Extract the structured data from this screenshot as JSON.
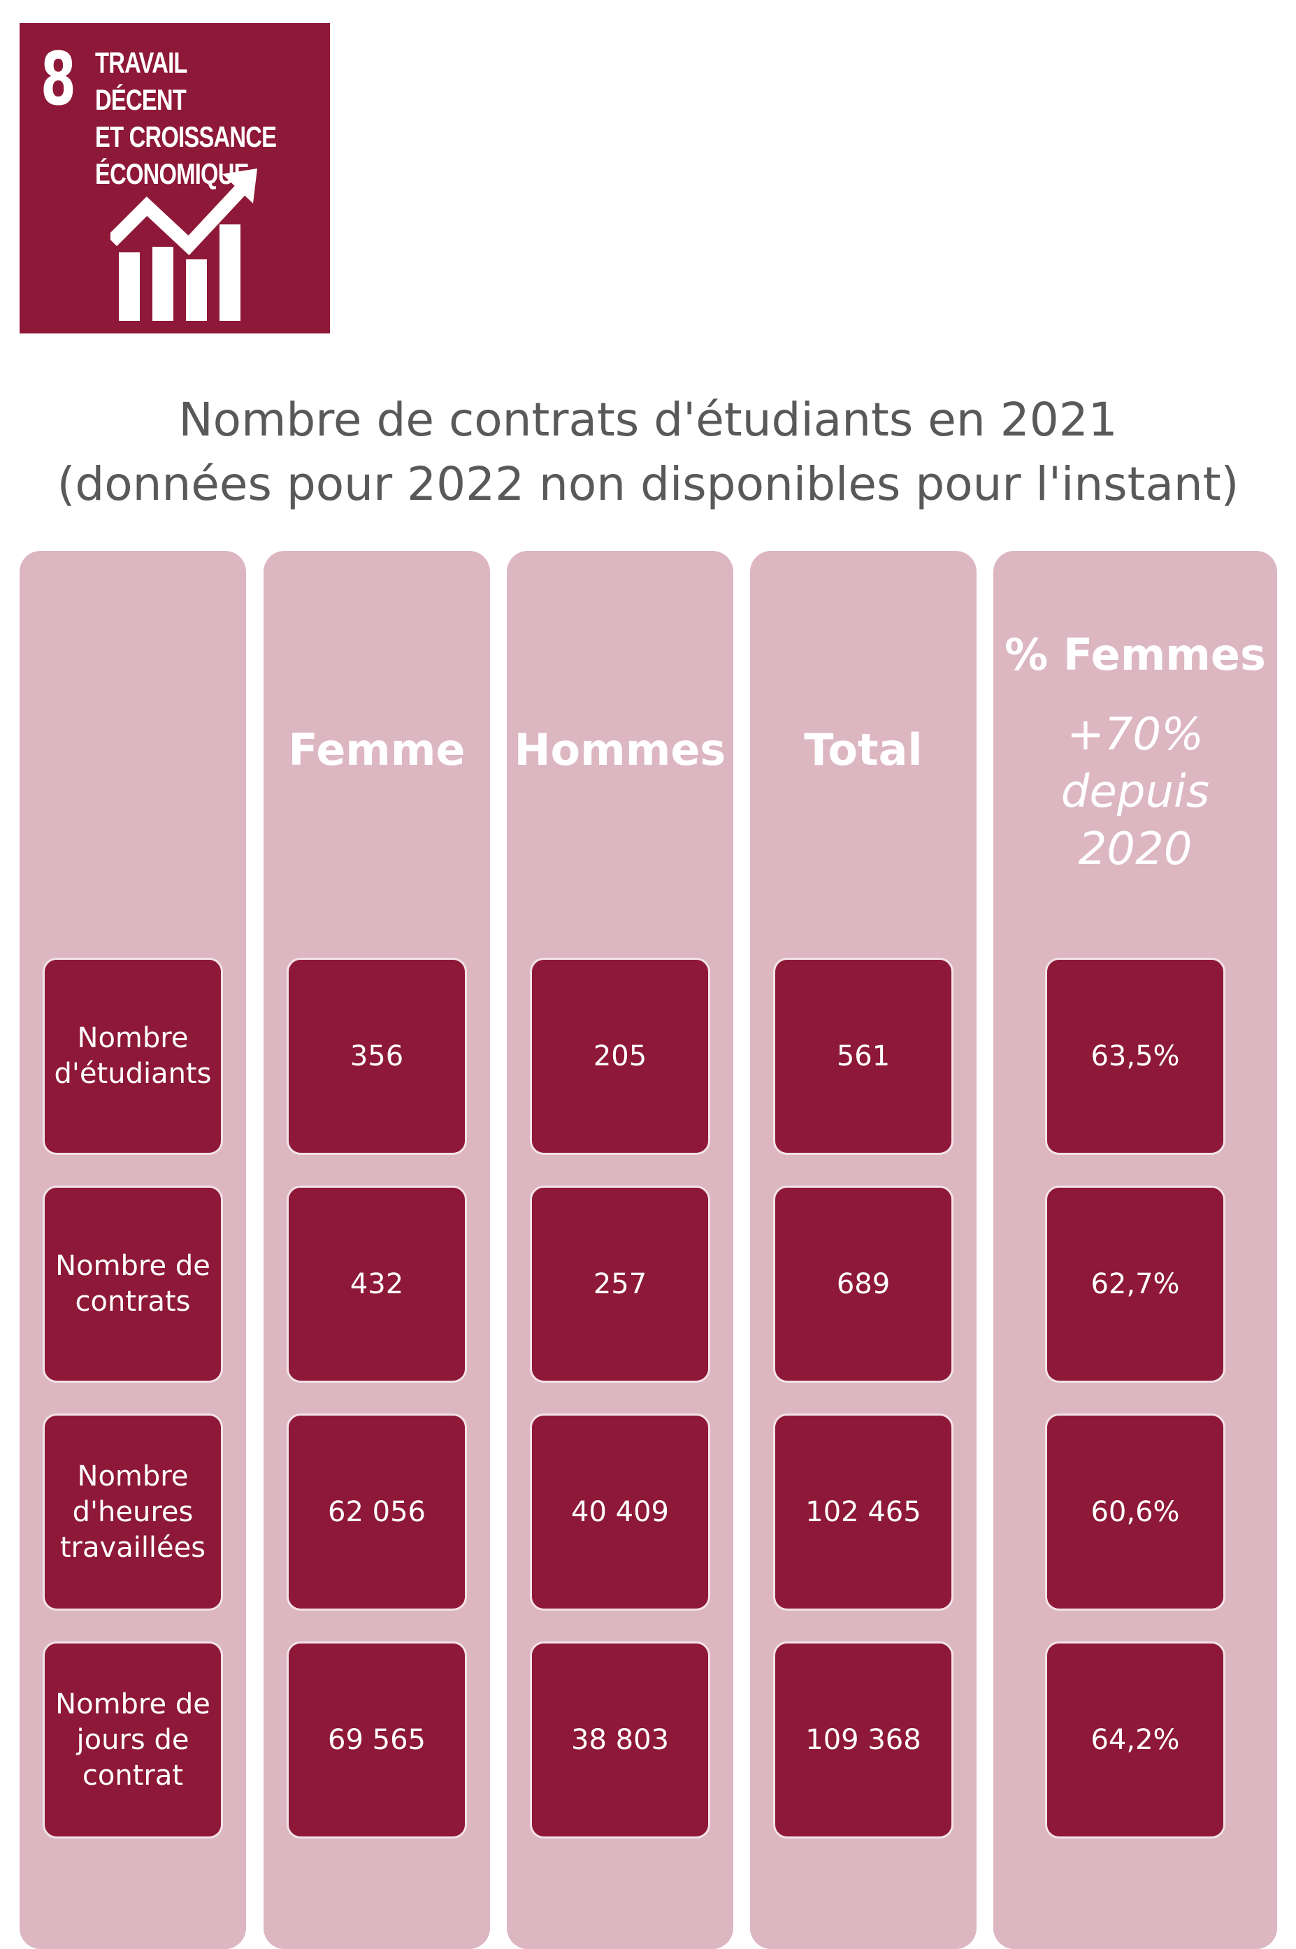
{
  "sdg": {
    "number": "8",
    "title": "TRAVAIL DÉCENT\nET CROISSANCE\nÉCONOMIQUE",
    "icon": "growth-chart-icon",
    "color": "#8e1837"
  },
  "colors": {
    "column_bg": "#dcb6c1",
    "cell_bg": "#8e1837",
    "title": "#595959"
  },
  "chart_data": {
    "type": "table",
    "title": "Nombre de contrats d'étudiants en 2021\n(données pour 2022 non disponibles pour l'instant)",
    "columns": [
      "",
      "Femme",
      "Hommes",
      "Total",
      "% Femmes"
    ],
    "column_note": "+70%\ndepuis\n2020",
    "rows": [
      {
        "label": "Nombre\nd'étudiants",
        "femme": "356",
        "hommes": "205",
        "total": "561",
        "pct_femmes": "63,5%"
      },
      {
        "label": "Nombre de\ncontrats",
        "femme": "432",
        "hommes": "257",
        "total": "689",
        "pct_femmes": "62,7%"
      },
      {
        "label": "Nombre\nd'heures\ntravaillées",
        "femme": "62 056",
        "hommes": "40 409",
        "total": "102 465",
        "pct_femmes": "60,6%"
      },
      {
        "label": "Nombre de\njours de\ncontrat",
        "femme": "69 565",
        "hommes": "38 803",
        "total": "109 368",
        "pct_femmes": "64,2%"
      }
    ]
  }
}
